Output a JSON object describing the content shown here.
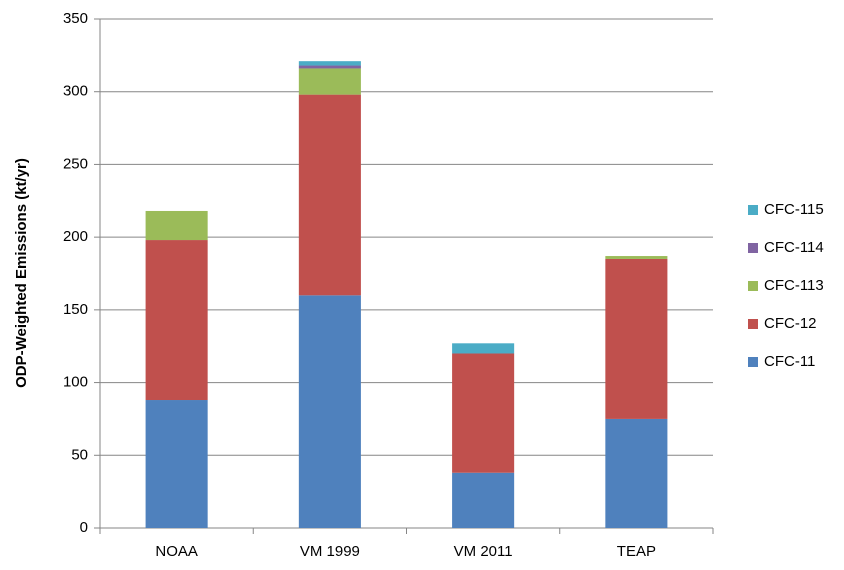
{
  "chart_data": {
    "type": "stacked_bar",
    "y_label": "ODP-Weighted Emissions (kt/yr)",
    "categories": [
      "NOAA",
      "VM 1999",
      "VM 2011",
      "TEAP"
    ],
    "series": [
      {
        "name": "CFC-11",
        "color": "#4f81bd",
        "values": [
          88,
          160,
          38,
          75
        ]
      },
      {
        "name": "CFC-12",
        "color": "#c0504d",
        "values": [
          110,
          138,
          82,
          110
        ]
      },
      {
        "name": "CFC-113",
        "color": "#9bbb59",
        "values": [
          20,
          18,
          0,
          2
        ]
      },
      {
        "name": "CFC-114",
        "color": "#8064a2",
        "values": [
          0,
          2,
          0,
          0
        ]
      },
      {
        "name": "CFC-115",
        "color": "#4bacc6",
        "values": [
          0,
          3,
          7,
          0
        ]
      }
    ],
    "ylim": [
      0,
      350
    ],
    "yticks": [
      0,
      50,
      100,
      150,
      200,
      250,
      300,
      350
    ],
    "grid": true
  }
}
